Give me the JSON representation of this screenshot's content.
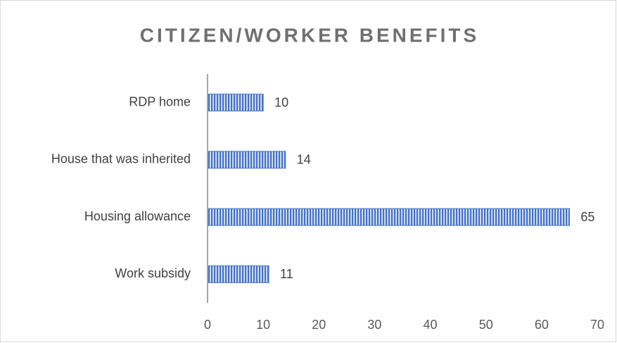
{
  "chart_data": {
    "type": "bar",
    "title": "CITIZEN/WORKER BENEFITS",
    "categories": [
      "RDP home",
      "House that was inherited",
      "Housing allowance",
      "Work subsidy"
    ],
    "values": [
      10,
      14,
      65,
      11
    ],
    "color": "#4472c4",
    "xlim": [
      0,
      70
    ],
    "xticks": [
      0,
      10,
      20,
      30,
      40,
      50,
      60,
      70
    ],
    "grid": false
  }
}
